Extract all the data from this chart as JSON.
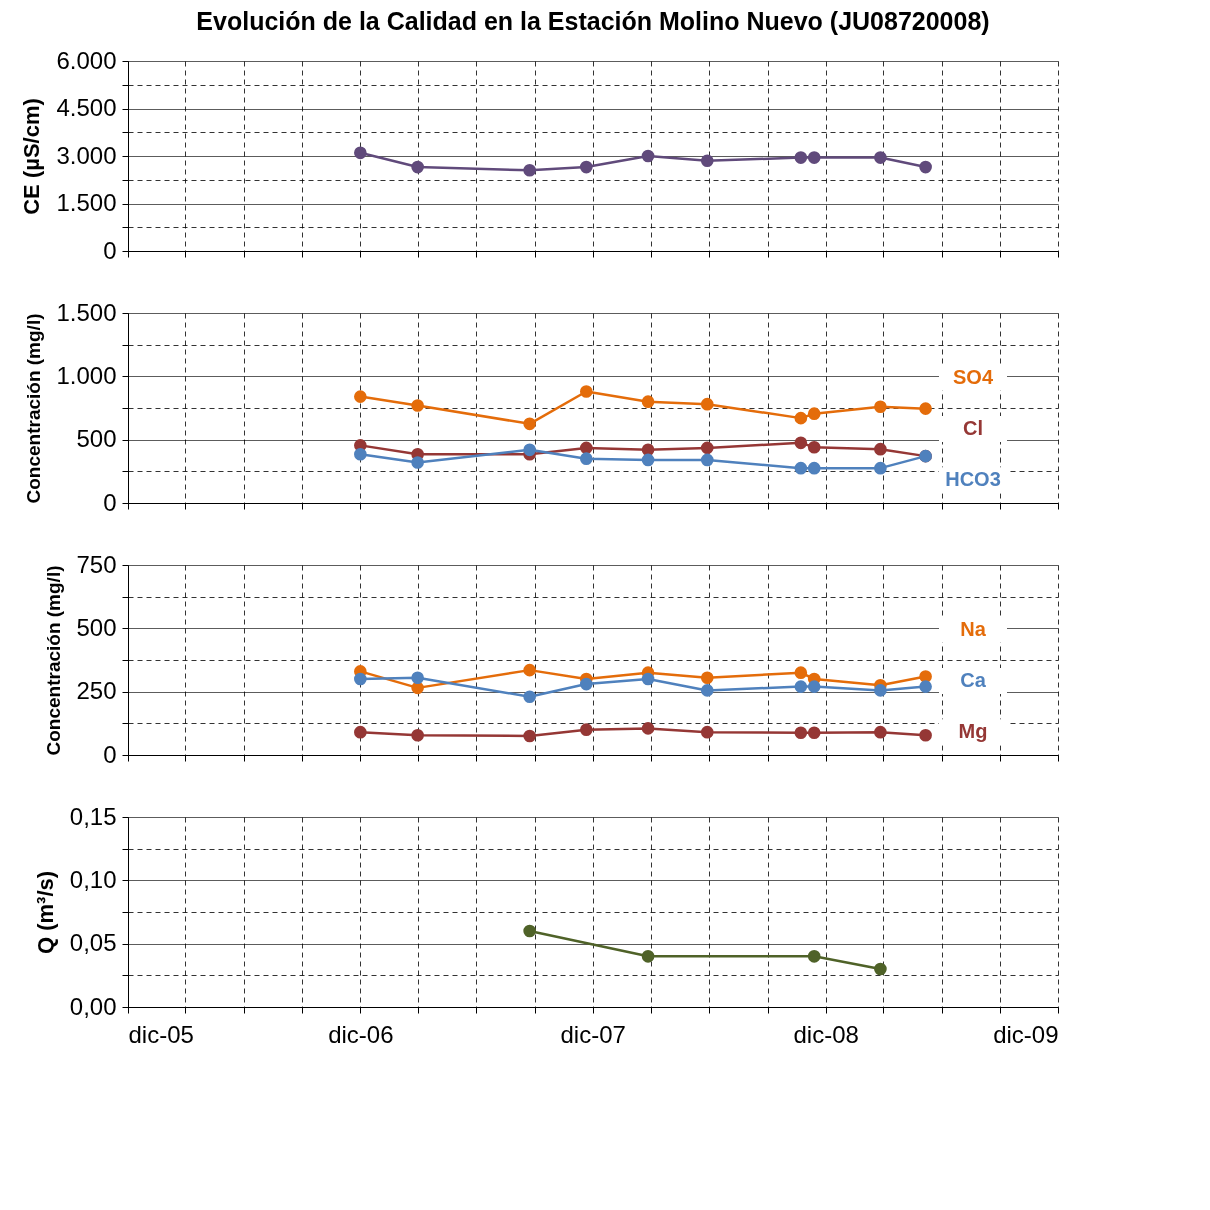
{
  "chart_data": [
    {
      "type": "line",
      "title": "Evolución de la Calidad en la Estación Molino Nuevo (JU08720008)",
      "ylabel": "CE (µS/cm)",
      "tick_labels": "y",
      "grid": true,
      "marker": "circle",
      "line_style": "solid",
      "x": [
        "2006-12-01",
        "2007-03-01",
        "2007-08-24",
        "2007-11-21",
        "2008-02-26",
        "2008-05-29",
        "2008-10-23",
        "2008-11-13",
        "2009-02-25",
        "2009-05-07"
      ],
      "xlim": [
        "2005-12-01",
        "2009-12-01"
      ],
      "xticks": [
        {
          "value": "2005-12-01",
          "label": null
        },
        {
          "value": "2006-03-01",
          "label": null
        },
        {
          "value": "2006-06-01",
          "label": null
        },
        {
          "value": "2006-09-01",
          "label": null
        },
        {
          "value": "2006-12-01",
          "label": null
        },
        {
          "value": "2007-03-01",
          "label": null
        },
        {
          "value": "2007-06-01",
          "label": null
        },
        {
          "value": "2007-09-01",
          "label": null
        },
        {
          "value": "2007-12-01",
          "label": null
        },
        {
          "value": "2008-03-01",
          "label": null
        },
        {
          "value": "2008-06-01",
          "label": null
        },
        {
          "value": "2008-09-01",
          "label": null
        },
        {
          "value": "2008-12-01",
          "label": null
        },
        {
          "value": "2009-03-01",
          "label": null
        },
        {
          "value": "2009-06-01",
          "label": null
        },
        {
          "value": "2009-09-01",
          "label": null
        },
        {
          "value": "2009-12-01",
          "label": null
        }
      ],
      "ylim": [
        0,
        6000
      ],
      "yticks": [
        0,
        {
          "value": 750,
          "label": null
        },
        {
          "value": 1500,
          "label": "1.500"
        },
        {
          "value": 2250,
          "label": null
        },
        {
          "value": 3000,
          "label": "3.000"
        },
        {
          "value": 3750,
          "label": null
        },
        {
          "value": 4500,
          "label": "4.500"
        },
        {
          "value": 5250,
          "label": null
        },
        {
          "value": 6000,
          "label": "6.000"
        }
      ],
      "series": [
        {
          "color": "#604a7b",
          "values": [
            3100,
            2650,
            2550,
            2650,
            3000,
            2850,
            2950,
            2950,
            2950,
            2650
          ]
        }
      ]
    },
    {
      "type": "line",
      "ylabel": "Concentración (mg/l)",
      "tick_labels": "y",
      "grid": true,
      "marker": "circle",
      "line_style": "solid",
      "legend": "right",
      "x": [
        "2006-12-01",
        "2007-03-01",
        "2007-08-24",
        "2007-11-21",
        "2008-02-26",
        "2008-05-29",
        "2008-10-23",
        "2008-11-13",
        "2009-02-25",
        "2009-05-07"
      ],
      "xlim": [
        "2005-12-01",
        "2009-12-01"
      ],
      "xticks": [
        {
          "value": "2005-12-01",
          "label": null
        },
        {
          "value": "2006-03-01",
          "label": null
        },
        {
          "value": "2006-06-01",
          "label": null
        },
        {
          "value": "2006-09-01",
          "label": null
        },
        {
          "value": "2006-12-01",
          "label": null
        },
        {
          "value": "2007-03-01",
          "label": null
        },
        {
          "value": "2007-06-01",
          "label": null
        },
        {
          "value": "2007-09-01",
          "label": null
        },
        {
          "value": "2007-12-01",
          "label": null
        },
        {
          "value": "2008-03-01",
          "label": null
        },
        {
          "value": "2008-06-01",
          "label": null
        },
        {
          "value": "2008-09-01",
          "label": null
        },
        {
          "value": "2008-12-01",
          "label": null
        },
        {
          "value": "2009-03-01",
          "label": null
        },
        {
          "value": "2009-06-01",
          "label": null
        },
        {
          "value": "2009-09-01",
          "label": null
        },
        {
          "value": "2009-12-01",
          "label": null
        }
      ],
      "ylim": [
        0,
        1500
      ],
      "yticks": [
        0,
        {
          "value": 250,
          "label": null
        },
        500,
        {
          "value": 750,
          "label": null
        },
        {
          "value": 1000,
          "label": "1.000"
        },
        {
          "value": 1250,
          "label": null
        },
        {
          "value": 1500,
          "label": "1.500"
        }
      ],
      "series": [
        {
          "name": "SO4",
          "color": "#e46c0a",
          "values": [
            840,
            770,
            625,
            880,
            800,
            780,
            670,
            705,
            760,
            745
          ]
        },
        {
          "name": "Cl",
          "color": "#953735",
          "values": [
            455,
            385,
            385,
            435,
            420,
            435,
            475,
            440,
            425,
            370
          ]
        },
        {
          "name": "HCO3",
          "color": "#4f81bd",
          "values": [
            385,
            320,
            420,
            350,
            340,
            340,
            275,
            275,
            275,
            370
          ]
        }
      ]
    },
    {
      "type": "line",
      "ylabel": "Concentración (mg/l)",
      "tick_labels": "y",
      "grid": true,
      "marker": "circle",
      "line_style": "solid",
      "legend": "right",
      "x": [
        "2006-12-01",
        "2007-03-01",
        "2007-08-24",
        "2007-11-21",
        "2008-02-26",
        "2008-05-29",
        "2008-10-23",
        "2008-11-13",
        "2009-02-25",
        "2009-05-07"
      ],
      "xlim": [
        "2005-12-01",
        "2009-12-01"
      ],
      "xticks": [
        {
          "value": "2005-12-01",
          "label": null
        },
        {
          "value": "2006-03-01",
          "label": null
        },
        {
          "value": "2006-06-01",
          "label": null
        },
        {
          "value": "2006-09-01",
          "label": null
        },
        {
          "value": "2006-12-01",
          "label": null
        },
        {
          "value": "2007-03-01",
          "label": null
        },
        {
          "value": "2007-06-01",
          "label": null
        },
        {
          "value": "2007-09-01",
          "label": null
        },
        {
          "value": "2007-12-01",
          "label": null
        },
        {
          "value": "2008-03-01",
          "label": null
        },
        {
          "value": "2008-06-01",
          "label": null
        },
        {
          "value": "2008-09-01",
          "label": null
        },
        {
          "value": "2008-12-01",
          "label": null
        },
        {
          "value": "2009-03-01",
          "label": null
        },
        {
          "value": "2009-06-01",
          "label": null
        },
        {
          "value": "2009-09-01",
          "label": null
        },
        {
          "value": "2009-12-01",
          "label": null
        }
      ],
      "ylim": [
        0,
        750
      ],
      "yticks": [
        0,
        {
          "value": 125,
          "label": null
        },
        250,
        {
          "value": 375,
          "label": null
        },
        500,
        {
          "value": 625,
          "label": null
        },
        750
      ],
      "series": [
        {
          "name": "Na",
          "color": "#e46c0a",
          "values": [
            330,
            265,
            335,
            300,
            325,
            305,
            325,
            300,
            275,
            310
          ]
        },
        {
          "name": "Ca",
          "color": "#4f81bd",
          "values": [
            300,
            305,
            230,
            280,
            300,
            255,
            270,
            270,
            255,
            270
          ]
        },
        {
          "name": "Mg",
          "color": "#953735",
          "values": [
            90,
            78,
            75,
            100,
            105,
            90,
            88,
            88,
            90,
            78
          ]
        }
      ]
    },
    {
      "type": "line",
      "ylabel": "Q (m³/s)",
      "grid": true,
      "marker": "circle",
      "line_style": "solid",
      "x": [
        "2007-08-24",
        "2008-02-26",
        "2008-11-13",
        "2009-02-25"
      ],
      "xlim": [
        "2005-12-01",
        "2009-12-01"
      ],
      "xticks": [
        {
          "value": "2005-12-01",
          "label": "dic-05"
        },
        {
          "value": "2006-03-01",
          "label": null
        },
        {
          "value": "2006-06-01",
          "label": null
        },
        {
          "value": "2006-09-01",
          "label": null
        },
        {
          "value": "2006-12-01",
          "label": "dic-06"
        },
        {
          "value": "2007-03-01",
          "label": null
        },
        {
          "value": "2007-06-01",
          "label": null
        },
        {
          "value": "2007-09-01",
          "label": null
        },
        {
          "value": "2007-12-01",
          "label": "dic-07"
        },
        {
          "value": "2008-03-01",
          "label": null
        },
        {
          "value": "2008-06-01",
          "label": null
        },
        {
          "value": "2008-09-01",
          "label": null
        },
        {
          "value": "2008-12-01",
          "label": "dic-08"
        },
        {
          "value": "2009-03-01",
          "label": null
        },
        {
          "value": "2009-06-01",
          "label": null
        },
        {
          "value": "2009-09-01",
          "label": null
        },
        {
          "value": "2009-12-01",
          "label": "dic-09"
        }
      ],
      "ylim": [
        0,
        0.15
      ],
      "yticks": [
        {
          "value": 0,
          "label": "0,00"
        },
        {
          "value": 0.025,
          "label": null
        },
        {
          "value": 0.05,
          "label": "0,05"
        },
        {
          "value": 0.075,
          "label": null
        },
        {
          "value": 0.1,
          "label": "0,10"
        },
        {
          "value": 0.125,
          "label": null
        },
        {
          "value": 0.15,
          "label": "0,15"
        }
      ],
      "series": [
        {
          "color": "#4f6228",
          "values": [
            0.06,
            0.04,
            0.04,
            0.03
          ]
        }
      ]
    }
  ]
}
